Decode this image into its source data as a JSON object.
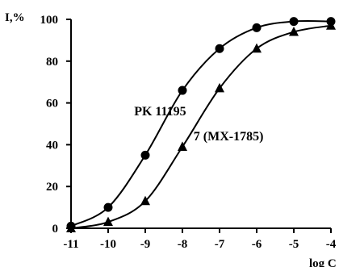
{
  "chart_data": {
    "type": "line",
    "title": "",
    "ylabel": "I,%",
    "xlabel": "log C",
    "xlim": [
      -11,
      -4
    ],
    "ylim": [
      0,
      100
    ],
    "x_ticks": [
      -11,
      -10,
      -9,
      -8,
      -7,
      -6,
      -5,
      -4
    ],
    "y_ticks": [
      0,
      20,
      40,
      60,
      80,
      100
    ],
    "grid": false,
    "legend": "none",
    "series": [
      {
        "x": [
          -11,
          -10,
          -9,
          -8,
          -7,
          -6,
          -5,
          -4
        ],
        "values": [
          1,
          10,
          35,
          66,
          86,
          96,
          99,
          99
        ],
        "marker": "circle",
        "color": "#000000"
      },
      {
        "x": [
          -11,
          -10,
          -9,
          -8,
          -7,
          -6,
          -5,
          -4
        ],
        "values": [
          0,
          3,
          13,
          39,
          67,
          86,
          94,
          97
        ],
        "marker": "triangle",
        "color": "#000000"
      }
    ],
    "annotations": [
      {
        "text": "PK 11195",
        "x": -9.3,
        "y": 54,
        "series": 0
      },
      {
        "text": "7 (MX-1785)",
        "x": -7.7,
        "y": 42,
        "series": 1
      }
    ]
  }
}
